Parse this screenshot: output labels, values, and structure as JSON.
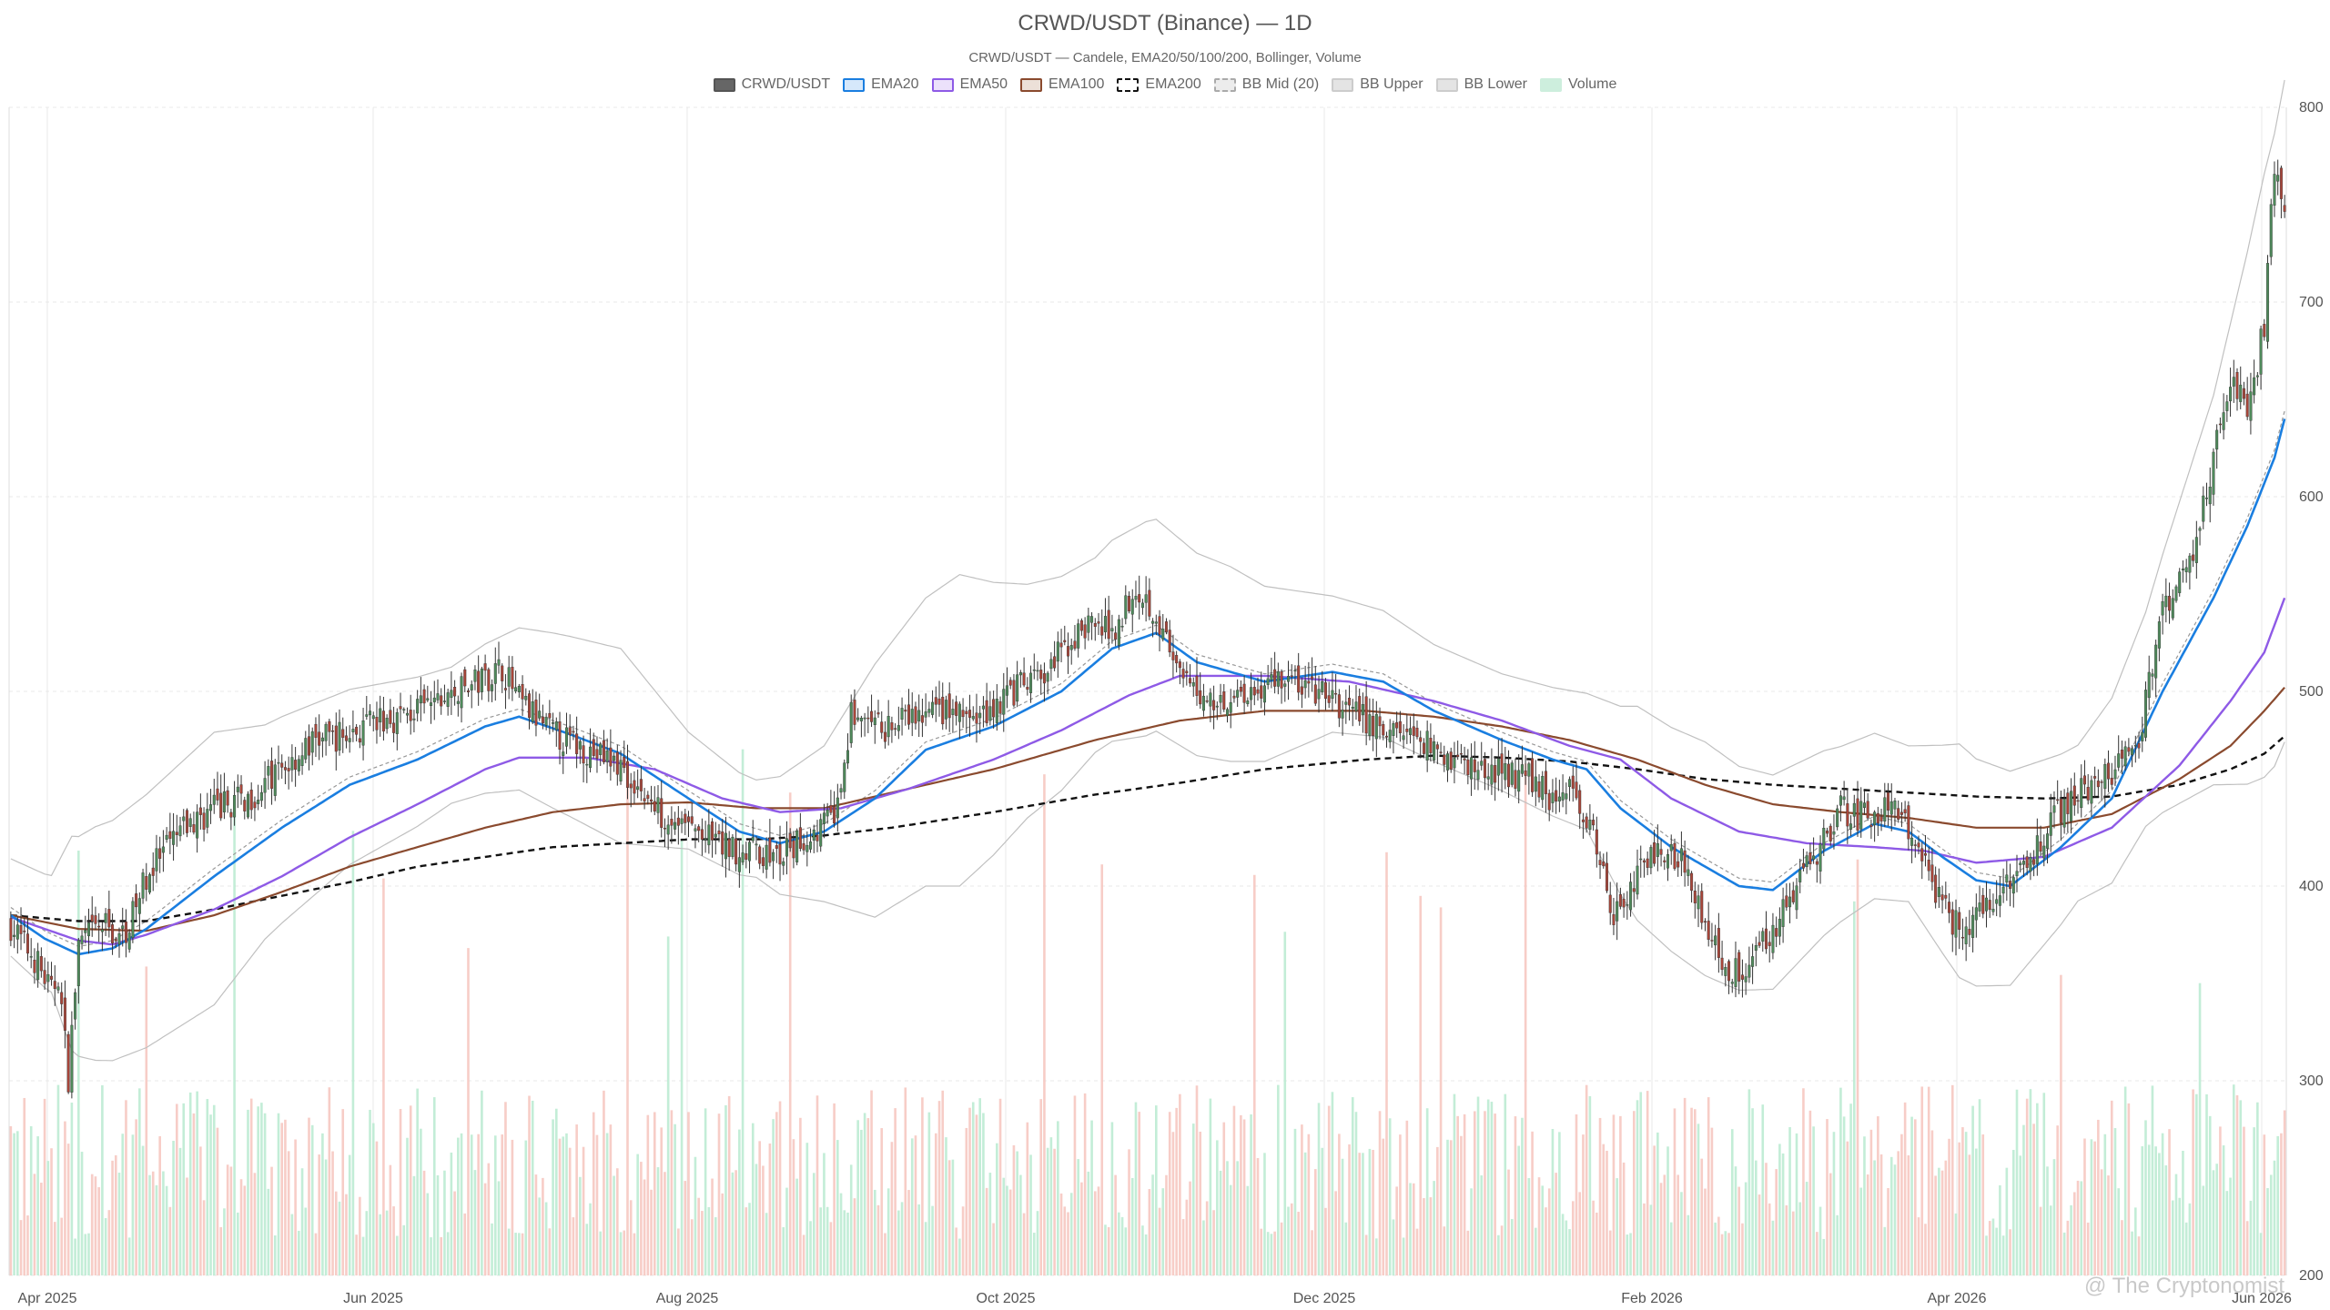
{
  "title": "CRWD/USDT (Binance) — 1D",
  "subtitle": "CRWD/USDT — Candele, EMA20/50/100/200, Bollinger, Volume",
  "watermark": "@ The Cryptonomist",
  "legend": [
    {
      "label": "CRWD/USDT",
      "fill": "#666666",
      "border": "#555555",
      "dash": false
    },
    {
      "label": "EMA20",
      "fill": "#d6e8fb",
      "border": "#1a7ee0",
      "dash": false
    },
    {
      "label": "EMA50",
      "fill": "#ece1fb",
      "border": "#8e5ae6",
      "dash": false
    },
    {
      "label": "EMA100",
      "fill": "#ece0d8",
      "border": "#8a4a2e",
      "dash": false
    },
    {
      "label": "EMA200",
      "fill": "#ffffff",
      "border": "#111111",
      "dash": true
    },
    {
      "label": "BB Mid (20)",
      "fill": "#ececec",
      "border": "#aaaaaa",
      "dash": true
    },
    {
      "label": "BB Upper",
      "fill": "#e4e4e4",
      "border": "#cccccc",
      "dash": false
    },
    {
      "label": "BB Lower",
      "fill": "#e4e4e4",
      "border": "#cccccc",
      "dash": false
    },
    {
      "label": "Volume",
      "fill": "#cdeedd",
      "border": "#cdeedd",
      "dash": false
    }
  ],
  "colors": {
    "up": "#4f8a5b",
    "down": "#a8463a",
    "vol_up": "#b9ead0",
    "vol_down": "#f6c4bd",
    "ema20": "#1a7ee0",
    "ema50": "#8e5ae6",
    "ema100": "#8a4a2e",
    "ema200": "#111111",
    "bb_mid": "#999999",
    "bb_band": "#c0c0c0",
    "grid": "#e8e8e8"
  },
  "chart_data": {
    "type": "candlestick",
    "x_ticks": [
      "Apr 2025",
      "Jun 2025",
      "Aug 2025",
      "Oct 2025",
      "Dec 2025",
      "Feb 2026",
      "Apr 2026",
      "Jun 2026"
    ],
    "y_ticks": [
      200,
      300,
      400,
      500,
      600,
      700,
      800
    ],
    "ylim": [
      200,
      800
    ],
    "y_axis_position": "right",
    "legend_position": "top-center",
    "grid": true,
    "price_anchors": [
      [
        0,
        380
      ],
      [
        8,
        360
      ],
      [
        12,
        345
      ],
      [
        14,
        355
      ],
      [
        17,
        302
      ],
      [
        20,
        370
      ],
      [
        24,
        376
      ],
      [
        28,
        380
      ],
      [
        32,
        372
      ],
      [
        36,
        385
      ],
      [
        40,
        405
      ],
      [
        50,
        428
      ],
      [
        60,
        440
      ],
      [
        70,
        445
      ],
      [
        80,
        460
      ],
      [
        90,
        475
      ],
      [
        100,
        478
      ],
      [
        110,
        485
      ],
      [
        120,
        490
      ],
      [
        130,
        498
      ],
      [
        138,
        505
      ],
      [
        145,
        512
      ],
      [
        150,
        495
      ],
      [
        160,
        478
      ],
      [
        170,
        470
      ],
      [
        180,
        462
      ],
      [
        190,
        440
      ],
      [
        200,
        430
      ],
      [
        210,
        420
      ],
      [
        220,
        418
      ],
      [
        227,
        414
      ],
      [
        235,
        425
      ],
      [
        244,
        438
      ],
      [
        248,
        488
      ],
      [
        255,
        480
      ],
      [
        265,
        485
      ],
      [
        275,
        490
      ],
      [
        285,
        485
      ],
      [
        295,
        500
      ],
      [
        305,
        508
      ],
      [
        310,
        520
      ],
      [
        318,
        535
      ],
      [
        325,
        530
      ],
      [
        332,
        555
      ],
      [
        338,
        540
      ],
      [
        345,
        505
      ],
      [
        355,
        495
      ],
      [
        365,
        500
      ],
      [
        375,
        508
      ],
      [
        385,
        500
      ],
      [
        395,
        490
      ],
      [
        405,
        480
      ],
      [
        415,
        478
      ],
      [
        420,
        470
      ],
      [
        430,
        462
      ],
      [
        440,
        458
      ],
      [
        450,
        455
      ],
      [
        455,
        445
      ],
      [
        462,
        450
      ],
      [
        468,
        420
      ],
      [
        472,
        385
      ],
      [
        476,
        395
      ],
      [
        480,
        405
      ],
      [
        488,
        420
      ],
      [
        495,
        410
      ],
      [
        500,
        380
      ],
      [
        507,
        355
      ],
      [
        512,
        360
      ],
      [
        518,
        375
      ],
      [
        524,
        388
      ],
      [
        530,
        410
      ],
      [
        535,
        425
      ],
      [
        540,
        440
      ],
      [
        547,
        435
      ],
      [
        555,
        440
      ],
      [
        562,
        425
      ],
      [
        570,
        390
      ],
      [
        575,
        378
      ],
      [
        580,
        385
      ],
      [
        585,
        395
      ],
      [
        590,
        405
      ],
      [
        598,
        420
      ],
      [
        605,
        440
      ],
      [
        610,
        450
      ],
      [
        617,
        455
      ],
      [
        622,
        460
      ],
      [
        628,
        475
      ],
      [
        635,
        540
      ],
      [
        640,
        555
      ],
      [
        645,
        580
      ],
      [
        650,
        620
      ],
      [
        656,
        660
      ],
      [
        660,
        640
      ],
      [
        665,
        690
      ],
      [
        668,
        770
      ],
      [
        671,
        745
      ]
    ],
    "ema20_anchors": [
      [
        0,
        385
      ],
      [
        10,
        373
      ],
      [
        20,
        365
      ],
      [
        30,
        368
      ],
      [
        40,
        378
      ],
      [
        60,
        405
      ],
      [
        80,
        430
      ],
      [
        100,
        452
      ],
      [
        120,
        465
      ],
      [
        140,
        482
      ],
      [
        150,
        487
      ],
      [
        165,
        478
      ],
      [
        180,
        468
      ],
      [
        200,
        445
      ],
      [
        215,
        428
      ],
      [
        227,
        422
      ],
      [
        240,
        428
      ],
      [
        255,
        445
      ],
      [
        270,
        470
      ],
      [
        290,
        482
      ],
      [
        310,
        500
      ],
      [
        325,
        522
      ],
      [
        338,
        530
      ],
      [
        350,
        515
      ],
      [
        370,
        505
      ],
      [
        390,
        510
      ],
      [
        405,
        505
      ],
      [
        420,
        490
      ],
      [
        440,
        475
      ],
      [
        455,
        465
      ],
      [
        465,
        460
      ],
      [
        475,
        440
      ],
      [
        490,
        420
      ],
      [
        510,
        400
      ],
      [
        520,
        398
      ],
      [
        535,
        418
      ],
      [
        550,
        432
      ],
      [
        560,
        428
      ],
      [
        570,
        415
      ],
      [
        580,
        403
      ],
      [
        590,
        400
      ],
      [
        605,
        420
      ],
      [
        620,
        445
      ],
      [
        635,
        500
      ],
      [
        650,
        548
      ],
      [
        660,
        585
      ],
      [
        668,
        620
      ],
      [
        671,
        640
      ]
    ],
    "ema50_anchors": [
      [
        0,
        384
      ],
      [
        10,
        378
      ],
      [
        20,
        372
      ],
      [
        30,
        370
      ],
      [
        40,
        375
      ],
      [
        60,
        388
      ],
      [
        80,
        405
      ],
      [
        100,
        425
      ],
      [
        120,
        442
      ],
      [
        140,
        460
      ],
      [
        150,
        466
      ],
      [
        170,
        466
      ],
      [
        190,
        460
      ],
      [
        210,
        445
      ],
      [
        227,
        438
      ],
      [
        245,
        440
      ],
      [
        265,
        450
      ],
      [
        290,
        465
      ],
      [
        310,
        480
      ],
      [
        330,
        498
      ],
      [
        345,
        508
      ],
      [
        370,
        508
      ],
      [
        395,
        505
      ],
      [
        420,
        495
      ],
      [
        440,
        485
      ],
      [
        460,
        472
      ],
      [
        475,
        465
      ],
      [
        490,
        445
      ],
      [
        510,
        428
      ],
      [
        530,
        422
      ],
      [
        550,
        420
      ],
      [
        565,
        418
      ],
      [
        580,
        412
      ],
      [
        600,
        415
      ],
      [
        620,
        430
      ],
      [
        640,
        462
      ],
      [
        655,
        495
      ],
      [
        665,
        520
      ],
      [
        671,
        548
      ]
    ],
    "ema100_anchors": [
      [
        0,
        385
      ],
      [
        20,
        378
      ],
      [
        40,
        377
      ],
      [
        60,
        385
      ],
      [
        80,
        397
      ],
      [
        100,
        410
      ],
      [
        120,
        420
      ],
      [
        140,
        430
      ],
      [
        160,
        438
      ],
      [
        180,
        442
      ],
      [
        200,
        443
      ],
      [
        220,
        440
      ],
      [
        240,
        440
      ],
      [
        260,
        448
      ],
      [
        290,
        460
      ],
      [
        320,
        475
      ],
      [
        345,
        485
      ],
      [
        370,
        490
      ],
      [
        400,
        490
      ],
      [
        420,
        487
      ],
      [
        440,
        482
      ],
      [
        460,
        475
      ],
      [
        480,
        465
      ],
      [
        500,
        452
      ],
      [
        520,
        442
      ],
      [
        540,
        438
      ],
      [
        560,
        435
      ],
      [
        580,
        430
      ],
      [
        600,
        430
      ],
      [
        620,
        437
      ],
      [
        640,
        455
      ],
      [
        655,
        472
      ],
      [
        665,
        490
      ],
      [
        671,
        502
      ]
    ],
    "ema200_anchors": [
      [
        0,
        385
      ],
      [
        20,
        382
      ],
      [
        40,
        382
      ],
      [
        60,
        388
      ],
      [
        80,
        395
      ],
      [
        100,
        402
      ],
      [
        120,
        410
      ],
      [
        140,
        415
      ],
      [
        160,
        420
      ],
      [
        180,
        422
      ],
      [
        200,
        424
      ],
      [
        220,
        424
      ],
      [
        240,
        426
      ],
      [
        260,
        430
      ],
      [
        290,
        438
      ],
      [
        320,
        447
      ],
      [
        345,
        453
      ],
      [
        370,
        460
      ],
      [
        400,
        465
      ],
      [
        420,
        467
      ],
      [
        440,
        466
      ],
      [
        460,
        464
      ],
      [
        480,
        460
      ],
      [
        500,
        455
      ],
      [
        520,
        452
      ],
      [
        540,
        450
      ],
      [
        560,
        448
      ],
      [
        580,
        446
      ],
      [
        600,
        445
      ],
      [
        620,
        446
      ],
      [
        640,
        452
      ],
      [
        655,
        460
      ],
      [
        665,
        468
      ],
      [
        671,
        477
      ]
    ],
    "bb_width_anchors": [
      [
        0,
        25
      ],
      [
        12,
        30
      ],
      [
        18,
        55
      ],
      [
        25,
        60
      ],
      [
        40,
        65
      ],
      [
        60,
        70
      ],
      [
        75,
        55
      ],
      [
        100,
        45
      ],
      [
        130,
        35
      ],
      [
        145,
        40
      ],
      [
        160,
        45
      ],
      [
        180,
        50
      ],
      [
        200,
        30
      ],
      [
        220,
        25
      ],
      [
        240,
        40
      ],
      [
        255,
        65
      ],
      [
        280,
        80
      ],
      [
        300,
        60
      ],
      [
        320,
        50
      ],
      [
        335,
        55
      ],
      [
        360,
        50
      ],
      [
        390,
        35
      ],
      [
        420,
        30
      ],
      [
        440,
        30
      ],
      [
        465,
        35
      ],
      [
        480,
        55
      ],
      [
        500,
        60
      ],
      [
        520,
        55
      ],
      [
        540,
        45
      ],
      [
        560,
        40
      ],
      [
        575,
        60
      ],
      [
        590,
        55
      ],
      [
        610,
        40
      ],
      [
        630,
        55
      ],
      [
        650,
        100
      ],
      [
        665,
        155
      ],
      [
        671,
        170
      ]
    ],
    "series": [
      {
        "name": "CRWD/USDT",
        "type": "candlestick"
      },
      {
        "name": "EMA20",
        "type": "line"
      },
      {
        "name": "EMA50",
        "type": "line"
      },
      {
        "name": "EMA100",
        "type": "line"
      },
      {
        "name": "EMA200",
        "type": "line"
      },
      {
        "name": "BB Mid (20)",
        "type": "line"
      },
      {
        "name": "BB Upper",
        "type": "line"
      },
      {
        "name": "BB Lower",
        "type": "line"
      },
      {
        "name": "Volume",
        "type": "bar"
      }
    ]
  }
}
